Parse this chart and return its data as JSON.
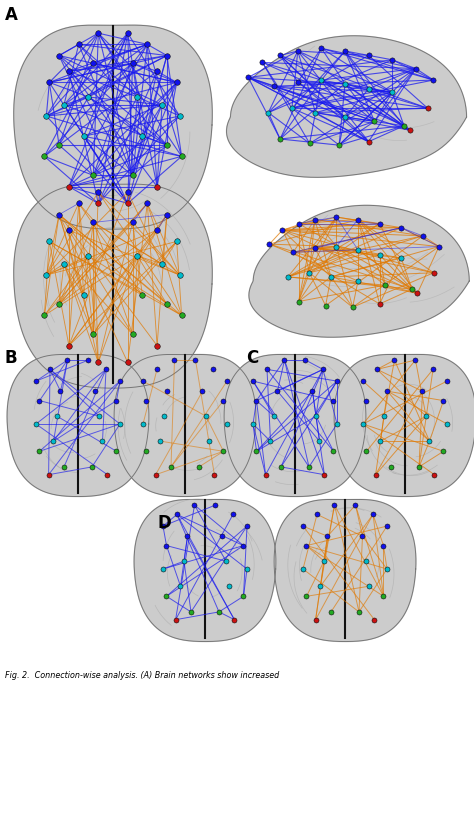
{
  "bg_color": "#ffffff",
  "brain_base_color": "#b8b8b8",
  "brain_light_color": "#e8e8e8",
  "brain_dark_color": "#888888",
  "midline_color": "#111111",
  "blue_conn": "#1a1aee",
  "orange_conn": "#e07800",
  "node_blue": "#1010ee",
  "node_cyan": "#00bbcc",
  "node_green": "#22aa22",
  "node_red": "#cc1111",
  "node_white": "#dddddd",
  "caption": "Fig. 2.  Connection-wise analysis. (A) Brain networks show increased",
  "label_A": "A",
  "label_B": "B",
  "label_C": "C",
  "label_D": "D"
}
